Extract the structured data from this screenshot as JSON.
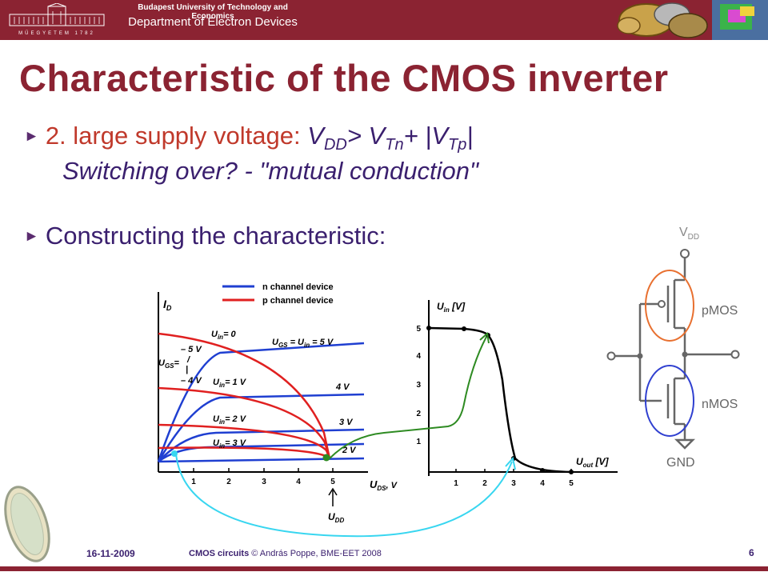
{
  "header": {
    "university": "Budapest University of Technology and Economics",
    "department": "Department of Electron Devices",
    "logo_text": "MŰEGYETEM 1782"
  },
  "title": "Characteristic of the CMOS inverter",
  "bullets": {
    "b1_lead": "2. large supply voltage:",
    "b1_formula_v": "V",
    "b1_sub_dd": "DD",
    "b1_gt": "> V",
    "b1_sub_tn": "Tn",
    "b1_plus": "+ |V",
    "b1_sub_tp": "Tp",
    "b1_end": "|",
    "b1_line2": "Switching over?  -  \"mutual conduction\"",
    "b2": "Constructing the characteristic:"
  },
  "figure": {
    "legend_n": "n channel device",
    "legend_p": "p channel device",
    "left_plot": {
      "y_label": "I",
      "y_label_sub": "D",
      "x_label": "U",
      "x_label_sub": "DS",
      "x_unit": ", V",
      "x_ticks": [
        "1",
        "2",
        "3",
        "4",
        "5"
      ],
      "udd_label": "U",
      "udd_sub": "DD",
      "ugs_label": "U",
      "ugs_sub": "GS",
      "ugs_eq": "=",
      "curve_labels": [
        "U",
        "U",
        "U",
        "U"
      ],
      "curve_subs": [
        "in",
        "in",
        "in",
        "in"
      ],
      "curve_vals": [
        "= 0",
        "= 1 V",
        "= 2 V",
        "= 3 V"
      ],
      "top_label": "U",
      "top_sub1": "GS",
      "top_mid": " = U",
      "top_sub2": "in",
      "top_end": " = 5 V",
      "right_labels": [
        "4 V",
        "3 V",
        "2 V"
      ],
      "left_labels": [
        "– 5 V",
        "– 4 V"
      ],
      "pipe": "/",
      "bar": "|"
    },
    "right_plot": {
      "y_label": "U",
      "y_sub": "in",
      "y_unit": " [V]",
      "x_label": "U",
      "x_sub": "out",
      "x_unit": " [V]",
      "y_ticks": [
        "1",
        "2",
        "3",
        "4",
        "5"
      ],
      "x_ticks": [
        "1",
        "2",
        "3",
        "4",
        "5"
      ]
    }
  },
  "circuit": {
    "vdd": "V",
    "vdd_sub": "DD",
    "pmos": "pMOS",
    "nmos": "nMOS",
    "gnd": "GND"
  },
  "footer": {
    "date": "16-11-2009",
    "course": "CMOS circuits",
    "copyright": " © András Poppe, BME-EET 2008",
    "page": "6"
  },
  "colors": {
    "brand": "#8b2332",
    "n_channel": "#1f3fd1",
    "p_channel": "#e02020",
    "transfer_curve": "#000000",
    "mapping_green": "#2e8b22",
    "mapping_cyan": "#38d6f0"
  }
}
